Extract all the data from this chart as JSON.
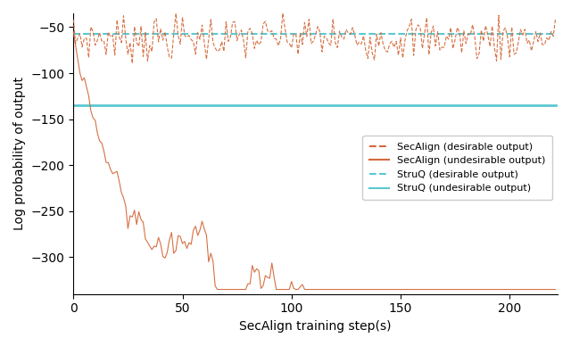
{
  "secalign_desirable_level": -62,
  "struq_desirable_level": -57,
  "struq_undesirable_level": -135,
  "x_max": 222,
  "ylim": [
    -340,
    -35
  ],
  "xlabel": "SecAlign training step(s)",
  "ylabel": "Log probability of output",
  "secalign_color": "#D4693A",
  "struq_color": "#5BC8D0",
  "legend_labels": [
    "SecAlign (desirable output)",
    "SecAlign (undesirable output)",
    "StruQ (desirable output)",
    "StruQ (undesirable output)"
  ],
  "yticks": [
    -50,
    -100,
    -150,
    -200,
    -250,
    -300
  ],
  "xticks": [
    0,
    50,
    100,
    150,
    200
  ]
}
